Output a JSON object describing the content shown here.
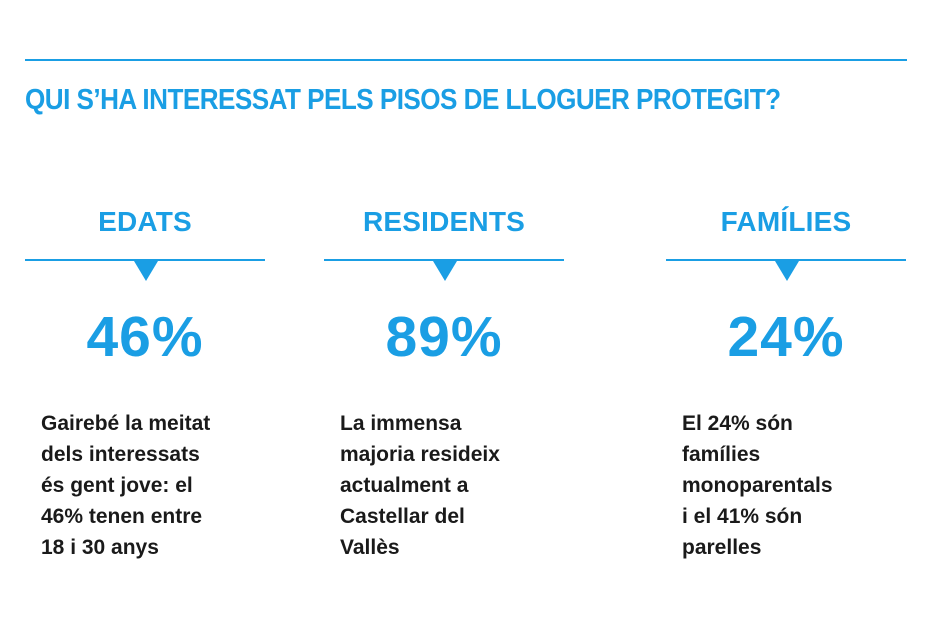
{
  "header": {
    "title": "QUI S’HA INTERESSAT PELS PISOS DE LLOGUER PROTEGIT?"
  },
  "columns": [
    {
      "title": "EDATS",
      "percent": "46%",
      "description": [
        "Gairebé la meitat",
        "dels interessats",
        "és gent jove: el",
        "46% tenen entre",
        "18 i 30 anys"
      ]
    },
    {
      "title": "RESIDENTS",
      "percent": "89%",
      "description": [
        "La immensa",
        "majoria resideix",
        "actualment a",
        "Castellar del",
        "Vallès"
      ]
    },
    {
      "title": "FAMÍLIES",
      "percent": "24%",
      "description": [
        "El 24% són",
        "famílies",
        "monoparentals",
        "i el 41% són",
        "parelles"
      ]
    }
  ],
  "colors": {
    "accent": "#1a9ee4",
    "text": "#1a1a1a"
  }
}
